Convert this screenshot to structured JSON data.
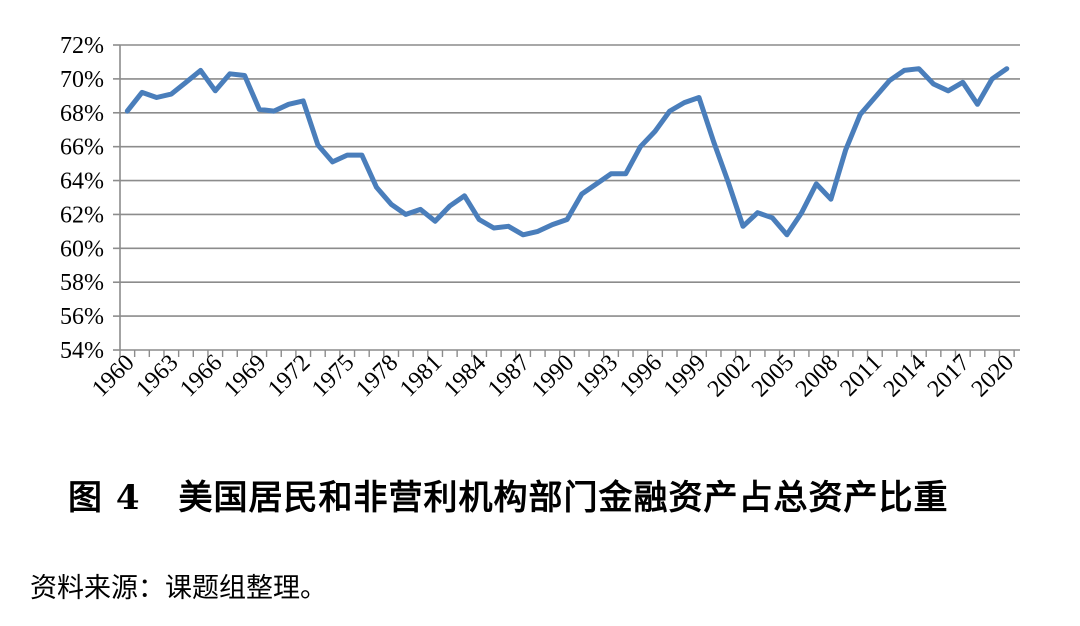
{
  "chart_data": {
    "type": "line",
    "x": [
      1960,
      1961,
      1962,
      1963,
      1964,
      1965,
      1966,
      1967,
      1968,
      1969,
      1970,
      1971,
      1972,
      1973,
      1974,
      1975,
      1976,
      1977,
      1978,
      1979,
      1980,
      1981,
      1982,
      1983,
      1984,
      1985,
      1986,
      1987,
      1988,
      1989,
      1990,
      1991,
      1992,
      1993,
      1994,
      1995,
      1996,
      1997,
      1998,
      1999,
      2000,
      2001,
      2002,
      2003,
      2004,
      2005,
      2006,
      2007,
      2008,
      2009,
      2010,
      2011,
      2012,
      2013,
      2014,
      2015,
      2016,
      2017,
      2018,
      2019,
      2020
    ],
    "series": [
      {
        "values": [
          68.1,
          69.2,
          68.9,
          69.1,
          69.8,
          70.5,
          69.3,
          70.3,
          70.2,
          68.2,
          68.1,
          68.5,
          68.7,
          66.1,
          65.1,
          65.5,
          65.5,
          63.6,
          62.6,
          62.0,
          62.3,
          61.6,
          62.5,
          63.1,
          61.7,
          61.2,
          61.3,
          60.8,
          61.0,
          61.4,
          61.7,
          63.2,
          63.8,
          64.4,
          64.4,
          66.0,
          66.9,
          68.1,
          68.6,
          68.9,
          66.3,
          63.9,
          61.3,
          62.1,
          61.8,
          60.8,
          62.1,
          63.8,
          62.9,
          65.8,
          67.9,
          68.9,
          69.9,
          70.5,
          70.6,
          69.7,
          69.3,
          69.8,
          68.5,
          70.0,
          70.6
        ]
      }
    ],
    "y_ticks": [
      "54%",
      "56%",
      "58%",
      "60%",
      "62%",
      "64%",
      "66%",
      "68%",
      "70%",
      "72%"
    ],
    "x_ticks": [
      "1960",
      "1963",
      "1966",
      "1969",
      "1972",
      "1975",
      "1978",
      "1981",
      "1984",
      "1987",
      "1990",
      "1993",
      "1996",
      "1999",
      "2002",
      "2005",
      "2008",
      "2011",
      "2014",
      "2017",
      "2020"
    ],
    "ylim": [
      54,
      72
    ],
    "grid": true,
    "color": "#4a7ebb",
    "title": "图 4　美国居民和非营利机构部门金融资产占总资产比重",
    "xlabel": "",
    "ylabel": ""
  },
  "caption": {
    "figure_number": "图 4",
    "text": "美国居民和非营利机构部门金融资产占总资产比重"
  },
  "source": "资料来源：课题组整理。"
}
